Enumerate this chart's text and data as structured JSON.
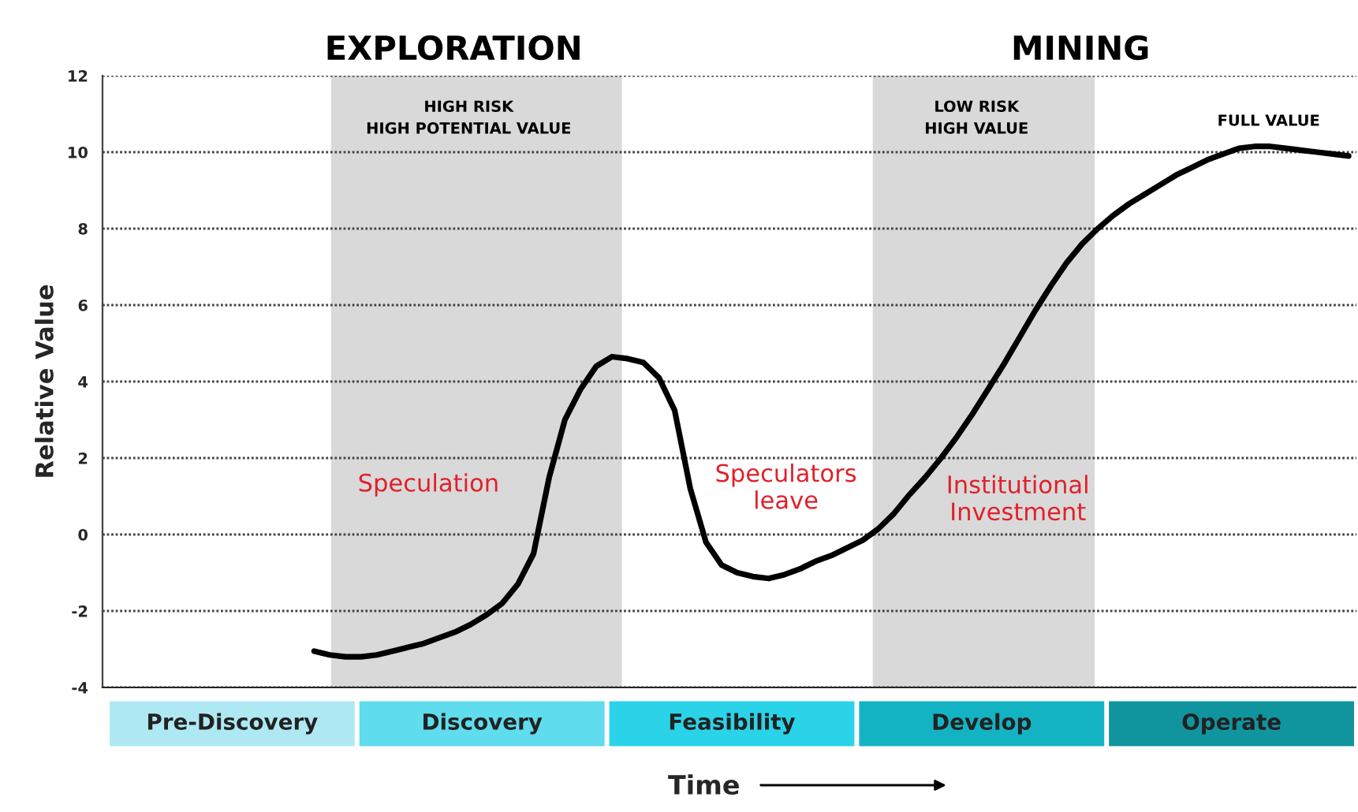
{
  "chart_data": [
    {
      "type": "line",
      "categories": [
        null,
        null,
        null,
        null,
        null,
        null,
        null,
        null,
        null,
        null,
        null,
        null,
        null,
        null,
        null,
        null,
        null,
        null,
        null,
        null,
        null,
        null,
        null,
        null,
        null,
        null,
        null,
        null,
        null,
        null,
        null,
        null,
        null,
        null,
        null,
        null,
        null,
        null,
        null,
        null,
        null,
        null,
        null,
        null,
        null,
        null,
        null,
        null,
        null,
        null,
        null,
        null,
        null,
        null,
        null,
        null,
        null,
        null,
        null,
        null,
        null,
        null,
        null,
        null,
        null,
        null,
        null,
        null,
        null,
        null,
        null,
        null,
        null,
        null,
        null,
        null,
        null,
        null,
        null,
        null
      ],
      "ylabel": "Relative Value",
      "ylim": [
        -4,
        12
      ],
      "yticks": [
        -4,
        -2,
        0,
        2,
        4,
        6,
        8,
        10,
        12
      ],
      "grid": "y",
      "tick_labels": "y",
      "series": [
        {
          "color": "#000000",
          "values": [
            null,
            null,
            null,
            null,
            null,
            null,
            null,
            null,
            null,
            null,
            null,
            null,
            null,
            -3.05,
            -3.15,
            -3.2,
            -3.2,
            -3.15,
            -3.05,
            -2.95,
            -2.85,
            -2.7,
            -2.55,
            -2.35,
            -2.1,
            -1.8,
            -1.3,
            -0.5,
            1.5,
            3.0,
            3.8,
            4.4,
            4.65,
            4.6,
            4.5,
            4.1,
            3.25,
            1.2,
            -0.2,
            -0.8,
            -1.0,
            -1.1,
            -1.15,
            -1.05,
            -0.9,
            -0.7,
            -0.55,
            -0.35,
            -0.15,
            0.15,
            0.55,
            1.05,
            1.5,
            2.0,
            2.55,
            3.15,
            3.8,
            4.45,
            5.15,
            5.85,
            6.5,
            7.1,
            7.6,
            8.0,
            8.35,
            8.65,
            8.9,
            9.15,
            9.4,
            9.6,
            9.8,
            9.95,
            10.1,
            10.15,
            10.15,
            10.1,
            10.05,
            10.0,
            9.95,
            9.9
          ]
        }
      ],
      "line_style": "solid",
      "marker": "none",
      "annotations": [
        "EXPLORATION",
        "MINING",
        "HIGH RISK\nHIGH POTENTIAL VALUE",
        "LOW RISK\nHIGH VALUE",
        "FULL VALUE",
        "Speculation",
        "Speculators\nleave",
        "Institutional\nInvestment"
      ]
    },
    {
      "type": "other",
      "categories": [
        "Pre-Discovery",
        "Discovery",
        "Feasibility",
        "Develop",
        "Operate"
      ],
      "colors": [
        "#aee9f3",
        "#5fdcee",
        "#2bd3e9",
        "#14b3c4",
        "#10959f"
      ],
      "xlabel": "Time"
    }
  ]
}
